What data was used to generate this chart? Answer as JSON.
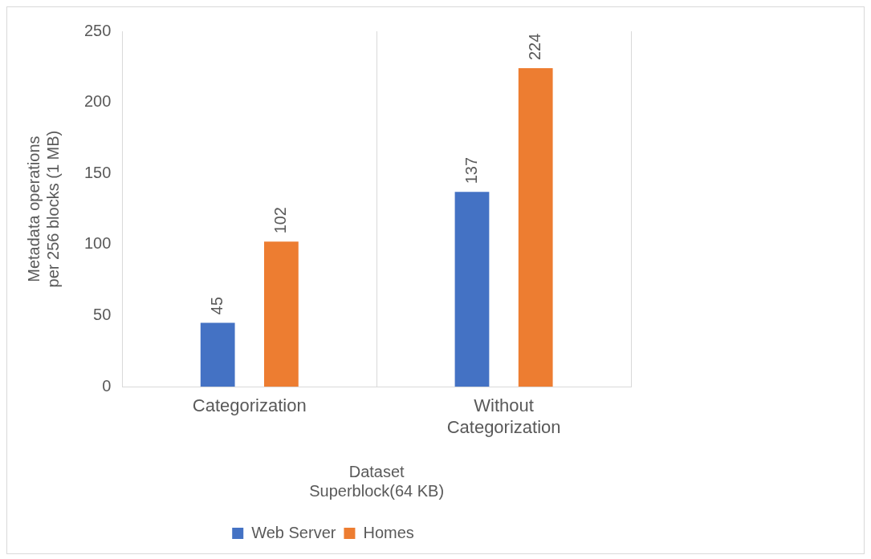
{
  "chart_data": {
    "type": "bar",
    "xlabel": "Dataset\nSuperblock(64 KB)",
    "ylabel": "Metadata operations\nper 256 blocks (1 MB)",
    "categories": [
      "Categorization",
      "Without Categorization"
    ],
    "series": [
      {
        "name": "Web Server",
        "color": "#4472c4",
        "values": [
          45,
          137
        ]
      },
      {
        "name": "Homes",
        "color": "#ed7d31",
        "values": [
          102,
          224
        ]
      }
    ],
    "ylim": [
      0,
      250
    ],
    "yticks": [
      0,
      50,
      100,
      150,
      200,
      250
    ],
    "grid": "x",
    "legend": "bottom",
    "data_labels": true
  }
}
